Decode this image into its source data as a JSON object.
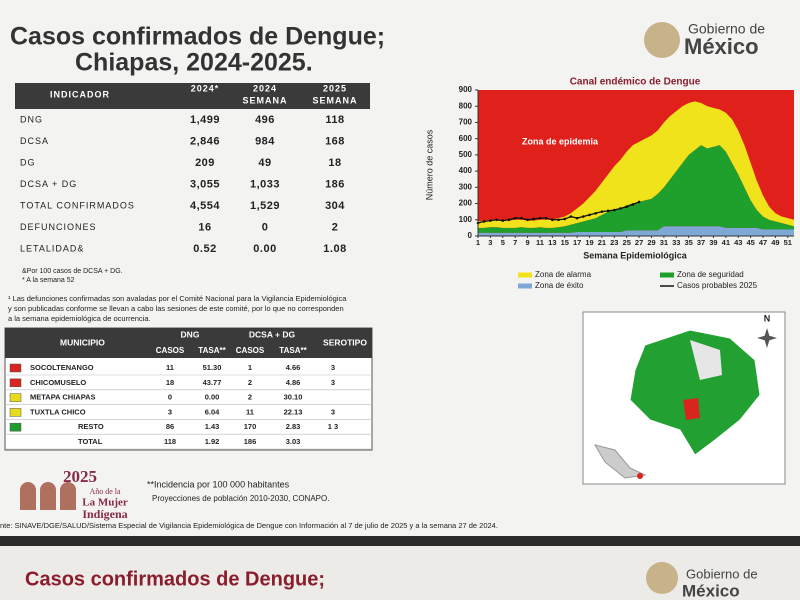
{
  "header": {
    "title_line1": "Casos confirmados de Dengue;",
    "title_line2": "Chiapas, 2024-2025.",
    "logo_line1": "Gobierno de",
    "logo_line2": "México"
  },
  "indicator_table": {
    "columns": [
      [
        "INDICADOR"
      ],
      [
        "2024*"
      ],
      [
        "2024",
        "SEMANA"
      ],
      [
        "2025",
        "SEMANA"
      ]
    ],
    "rows": [
      [
        "DNG",
        "1,499",
        "496",
        "118"
      ],
      [
        "DCSA",
        "2,846",
        "984",
        "168"
      ],
      [
        "DG",
        "209",
        "49",
        "18"
      ],
      [
        "DCSA + DG",
        "3,055",
        "1,033",
        "186"
      ],
      [
        "TOTAL CONFIRMADOS",
        "4,554",
        "1,529",
        "304"
      ],
      [
        "DEFUNCIONES",
        "16",
        "0",
        "2"
      ],
      [
        "LETALIDAD&",
        "0.52",
        "0.00",
        "1.08"
      ]
    ]
  },
  "indicator_notes": [
    "&Por 100 casos de DCSA + DG.",
    "* A la semana 52"
  ],
  "deaths_note": [
    "¹ Las defunciones confirmadas son avaladas por el Comité Nacional para la Vigilancia Epidemiológica",
    "y son publicadas conforme se llevan a cabo las sesiones de este comité, por lo que no corresponden",
    "a la semana epidemiológica de ocurrencia."
  ],
  "municipality_table": {
    "group_headers": [
      "MUNICIPIO",
      "DNG",
      "DCSA + DG",
      "SEROTIPO"
    ],
    "sub_headers": [
      "CASOS",
      "TASA**",
      "CASOS",
      "TASA**"
    ],
    "rows": [
      {
        "color": "#d8261f",
        "cells": [
          "SOCOLTENANGO",
          "11",
          "51.30",
          "1",
          "4.66",
          "3"
        ]
      },
      {
        "color": "#d8261f",
        "cells": [
          "CHICOMUSELO",
          "18",
          "43.77",
          "2",
          "4.86",
          "3"
        ]
      },
      {
        "color": "#e8dc1a",
        "cells": [
          "METAPA CHIAPAS",
          "0",
          "0.00",
          "2",
          "30.10",
          ""
        ]
      },
      {
        "color": "#e8dc1a",
        "cells": [
          "TUXTLA CHICO",
          "3",
          "6.04",
          "11",
          "22.13",
          "3"
        ]
      },
      {
        "color": "#1e9c2c",
        "cells": [
          "RESTO",
          "86",
          "1.43",
          "170",
          "2.83",
          "1 3"
        ]
      },
      {
        "color": null,
        "cells": [
          "TOTAL",
          "118",
          "1.92",
          "186",
          "3.03",
          ""
        ]
      }
    ]
  },
  "notes": [
    "**Incidencia por 100 000 habitantes",
    "Proyecciones de población 2010-2030, CONAPO."
  ],
  "year_logo": [
    "2025",
    "Año de la",
    "La Mujer",
    "Indígena"
  ],
  "source": "nte: SINAVE/DGE/SALUD/Sistema Especial de Vigilancia Epidemiológica de Dengue con Información al 7 de julio de 2025 y a la semana 27 de 2024.",
  "map": {
    "north": "N"
  },
  "next_slide": {
    "title": "Casos confirmados de Dengue;",
    "logo_line1": "Gobierno de",
    "logo_line2": "México"
  },
  "chart_data": {
    "type": "area",
    "stacked": true,
    "title": "Canal endémico de Dengue",
    "y_label": "Número de casos",
    "x_label": "Semana Epidemiológica",
    "annotation": {
      "text": "Zona de epidemia",
      "color": "#e0201b"
    },
    "x": [
      1,
      2,
      3,
      4,
      5,
      6,
      7,
      8,
      9,
      10,
      11,
      12,
      13,
      14,
      15,
      16,
      17,
      18,
      19,
      20,
      21,
      22,
      23,
      24,
      25,
      26,
      27,
      28,
      29,
      30,
      31,
      32,
      33,
      34,
      35,
      36,
      37,
      38,
      39,
      40,
      41,
      42,
      43,
      44,
      45,
      46,
      47,
      48,
      49,
      50,
      51,
      52
    ],
    "xlim": [
      1,
      52
    ],
    "xticks": [
      1,
      3,
      5,
      7,
      9,
      11,
      13,
      15,
      17,
      19,
      21,
      23,
      25,
      27,
      29,
      31,
      33,
      35,
      37,
      39,
      41,
      43,
      45,
      47,
      49,
      51
    ],
    "ylim": [
      0,
      900
    ],
    "yticks": [
      0,
      100,
      200,
      300,
      400,
      500,
      600,
      700,
      800,
      900
    ],
    "series": [
      {
        "name": "Zona de alarma",
        "color": "#f0e31c",
        "values": [
          40,
          45,
          45,
          45,
          45,
          45,
          50,
          45,
          45,
          45,
          45,
          50,
          50,
          55,
          60,
          70,
          90,
          110,
          140,
          170,
          200,
          230,
          270,
          300,
          330,
          360,
          370,
          380,
          390,
          390,
          400,
          390,
          370,
          350,
          320,
          300,
          260,
          260,
          240,
          220,
          240,
          270,
          270,
          260,
          230,
          180,
          130,
          80,
          50,
          40,
          40,
          40
        ]
      },
      {
        "name": "Zona de seguridad",
        "color": "#1fa02c",
        "values": [
          30,
          30,
          35,
          35,
          30,
          30,
          30,
          35,
          30,
          30,
          35,
          30,
          30,
          35,
          40,
          50,
          55,
          65,
          75,
          85,
          105,
          125,
          135,
          145,
          155,
          165,
          175,
          185,
          195,
          225,
          240,
          290,
          340,
          390,
          440,
          470,
          500,
          480,
          490,
          500,
          470,
          400,
          330,
          250,
          170,
          110,
          80,
          60,
          50,
          40,
          30,
          20
        ]
      },
      {
        "name": "Zona de éxito",
        "color": "#7fa8d6",
        "values": [
          20,
          20,
          20,
          20,
          20,
          20,
          20,
          20,
          20,
          20,
          20,
          20,
          20,
          20,
          20,
          20,
          25,
          25,
          25,
          25,
          25,
          25,
          25,
          25,
          35,
          35,
          35,
          35,
          35,
          35,
          60,
          60,
          60,
          60,
          60,
          60,
          60,
          60,
          60,
          60,
          50,
          50,
          50,
          50,
          50,
          50,
          40,
          40,
          40,
          40,
          40,
          40
        ]
      },
      {
        "name": "Casos probables 2025",
        "color": "#111111",
        "kind": "line",
        "values": [
          80,
          90,
          95,
          100,
          95,
          100,
          110,
          110,
          100,
          105,
          110,
          110,
          100,
          100,
          105,
          120,
          110,
          120,
          130,
          140,
          150,
          155,
          160,
          170,
          180,
          195,
          210,
          null,
          null,
          null,
          null,
          null,
          null,
          null,
          null,
          null,
          null,
          null,
          null,
          null,
          null,
          null,
          null,
          null,
          null,
          null,
          null,
          null,
          null,
          null,
          null,
          null
        ]
      }
    ]
  }
}
